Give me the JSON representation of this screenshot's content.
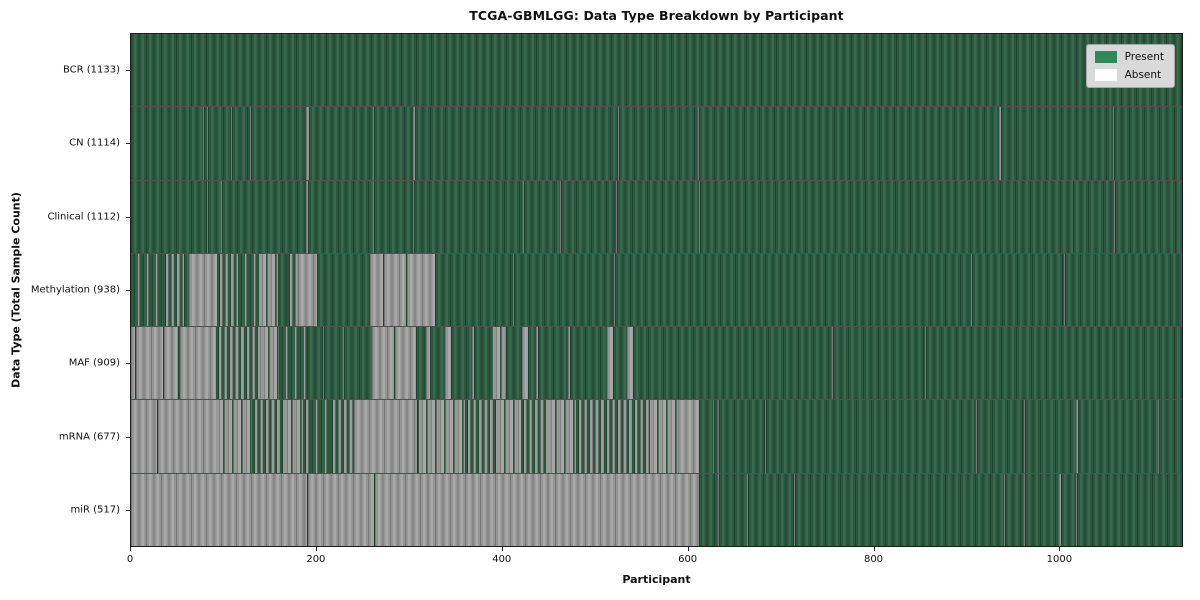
{
  "chart_data": {
    "type": "heatmap",
    "title": "TCGA-GBMLGG: Data Type Breakdown by Participant",
    "xlabel": "Participant",
    "ylabel": "Data Type (Total Sample Count)",
    "x_range": [
      0,
      1133
    ],
    "x_ticks": [
      0,
      200,
      400,
      600,
      800,
      1000
    ],
    "grid": false,
    "colors": {
      "present": "#2e8b57",
      "absent": "#ffffff",
      "bar_edge": "#1b1b1b"
    },
    "legend": {
      "position": "upper-right",
      "entries": [
        {
          "label": "Present",
          "color": "#2e8b57"
        },
        {
          "label": "Absent",
          "color": "#ffffff"
        }
      ]
    },
    "state_key": {
      "present": "data present for all participants in range",
      "absent": "data absent for all participants in range",
      "mixed": "roughly half of participants in range have data",
      "mixed-present": "mostly present with scattered absent participants",
      "mixed-absent": "mostly absent with scattered present participants"
    },
    "rows": [
      {
        "label": "BCR",
        "total_samples": 1133,
        "display": "BCR (1133)",
        "segments": [
          [
            0,
            1133,
            "present"
          ]
        ]
      },
      {
        "label": "CN",
        "total_samples": 1114,
        "display": "CN (1114)",
        "segments": [
          [
            0,
            62,
            "present"
          ],
          [
            62,
            63,
            "absent"
          ],
          [
            63,
            78,
            "present"
          ],
          [
            78,
            79,
            "absent"
          ],
          [
            79,
            82,
            "present"
          ],
          [
            82,
            83,
            "absent"
          ],
          [
            83,
            108,
            "present"
          ],
          [
            108,
            109,
            "absent"
          ],
          [
            109,
            128,
            "present"
          ],
          [
            128,
            129,
            "absent"
          ],
          [
            129,
            189,
            "present"
          ],
          [
            189,
            192,
            "absent"
          ],
          [
            192,
            261,
            "present"
          ],
          [
            261,
            262,
            "absent"
          ],
          [
            262,
            304,
            "present"
          ],
          [
            304,
            306,
            "absent"
          ],
          [
            306,
            525,
            "present"
          ],
          [
            525,
            526,
            "absent"
          ],
          [
            526,
            611,
            "present"
          ],
          [
            611,
            612,
            "absent"
          ],
          [
            612,
            936,
            "present"
          ],
          [
            936,
            938,
            "absent"
          ],
          [
            938,
            1059,
            "present"
          ],
          [
            1059,
            1060,
            "absent"
          ],
          [
            1060,
            1133,
            "present"
          ]
        ]
      },
      {
        "label": "Clinical",
        "total_samples": 1112,
        "display": "Clinical (1112)",
        "segments": [
          [
            0,
            82,
            "present"
          ],
          [
            82,
            83,
            "absent"
          ],
          [
            83,
            97,
            "present"
          ],
          [
            97,
            98,
            "absent"
          ],
          [
            98,
            189,
            "present"
          ],
          [
            189,
            191,
            "absent"
          ],
          [
            191,
            261,
            "present"
          ],
          [
            261,
            262,
            "absent"
          ],
          [
            262,
            304,
            "present"
          ],
          [
            304,
            305,
            "absent"
          ],
          [
            305,
            423,
            "present"
          ],
          [
            423,
            424,
            "absent"
          ],
          [
            424,
            463,
            "present"
          ],
          [
            463,
            464,
            "absent"
          ],
          [
            464,
            523,
            "present"
          ],
          [
            523,
            524,
            "absent"
          ],
          [
            524,
            612,
            "present"
          ],
          [
            612,
            613,
            "absent"
          ],
          [
            613,
            1015,
            "present"
          ],
          [
            1015,
            1016,
            "absent"
          ],
          [
            1016,
            1060,
            "present"
          ],
          [
            1060,
            1061,
            "absent"
          ],
          [
            1061,
            1133,
            "present"
          ]
        ]
      },
      {
        "label": "Methylation",
        "total_samples": 938,
        "display": "Methylation (938)",
        "segments": [
          [
            0,
            34,
            "mixed-present"
          ],
          [
            34,
            57,
            "mixed"
          ],
          [
            57,
            63,
            "present"
          ],
          [
            63,
            93,
            "absent"
          ],
          [
            93,
            115,
            "mixed"
          ],
          [
            115,
            138,
            "mixed-present"
          ],
          [
            138,
            158,
            "mixed-absent"
          ],
          [
            158,
            168,
            "present"
          ],
          [
            168,
            180,
            "mixed"
          ],
          [
            180,
            200,
            "absent"
          ],
          [
            200,
            258,
            "present"
          ],
          [
            258,
            272,
            "absent"
          ],
          [
            272,
            273,
            "present"
          ],
          [
            273,
            296,
            "absent"
          ],
          [
            296,
            297,
            "present"
          ],
          [
            297,
            328,
            "absent"
          ],
          [
            328,
            412,
            "present"
          ],
          [
            412,
            413,
            "absent"
          ],
          [
            413,
            521,
            "present"
          ],
          [
            521,
            522,
            "absent"
          ],
          [
            522,
            906,
            "present"
          ],
          [
            906,
            907,
            "absent"
          ],
          [
            907,
            1006,
            "present"
          ],
          [
            1006,
            1007,
            "absent"
          ],
          [
            1007,
            1133,
            "present"
          ]
        ]
      },
      {
        "label": "MAF",
        "total_samples": 909,
        "display": "MAF (909)",
        "segments": [
          [
            0,
            4,
            "absent"
          ],
          [
            4,
            5,
            "present"
          ],
          [
            5,
            34,
            "absent"
          ],
          [
            34,
            36,
            "present"
          ],
          [
            36,
            51,
            "absent"
          ],
          [
            51,
            53,
            "present"
          ],
          [
            53,
            92,
            "absent"
          ],
          [
            92,
            140,
            "mixed"
          ],
          [
            140,
            160,
            "mixed-absent"
          ],
          [
            160,
            190,
            "mixed-present"
          ],
          [
            190,
            207,
            "present"
          ],
          [
            207,
            208,
            "absent"
          ],
          [
            208,
            229,
            "present"
          ],
          [
            229,
            230,
            "absent"
          ],
          [
            230,
            260,
            "present"
          ],
          [
            260,
            284,
            "absent"
          ],
          [
            284,
            285,
            "present"
          ],
          [
            285,
            307,
            "absent"
          ],
          [
            307,
            318,
            "present"
          ],
          [
            318,
            322,
            "absent"
          ],
          [
            322,
            338,
            "present"
          ],
          [
            338,
            345,
            "absent"
          ],
          [
            345,
            368,
            "present"
          ],
          [
            368,
            370,
            "absent"
          ],
          [
            370,
            390,
            "present"
          ],
          [
            390,
            404,
            "mixed-absent"
          ],
          [
            404,
            421,
            "present"
          ],
          [
            421,
            428,
            "absent"
          ],
          [
            428,
            437,
            "present"
          ],
          [
            437,
            439,
            "absent"
          ],
          [
            439,
            471,
            "present"
          ],
          [
            471,
            473,
            "absent"
          ],
          [
            473,
            513,
            "present"
          ],
          [
            513,
            520,
            "absent"
          ],
          [
            520,
            535,
            "present"
          ],
          [
            535,
            541,
            "absent"
          ],
          [
            541,
            756,
            "present"
          ],
          [
            756,
            757,
            "absent"
          ],
          [
            757,
            856,
            "present"
          ],
          [
            856,
            857,
            "absent"
          ],
          [
            857,
            1043,
            "present"
          ],
          [
            1043,
            1044,
            "absent"
          ],
          [
            1044,
            1133,
            "present"
          ]
        ]
      },
      {
        "label": "mRNA",
        "total_samples": 677,
        "display": "mRNA (677)",
        "segments": [
          [
            0,
            28,
            "absent"
          ],
          [
            28,
            29,
            "present"
          ],
          [
            29,
            92,
            "absent"
          ],
          [
            92,
            130,
            "mixed-absent"
          ],
          [
            130,
            165,
            "mixed"
          ],
          [
            165,
            185,
            "mixed-absent"
          ],
          [
            185,
            192,
            "mixed"
          ],
          [
            192,
            215,
            "mixed-present"
          ],
          [
            215,
            240,
            "mixed"
          ],
          [
            240,
            308,
            "absent"
          ],
          [
            308,
            310,
            "present"
          ],
          [
            310,
            360,
            "mixed-absent"
          ],
          [
            360,
            395,
            "mixed"
          ],
          [
            395,
            420,
            "mixed-absent"
          ],
          [
            420,
            450,
            "mixed"
          ],
          [
            450,
            480,
            "mixed-absent"
          ],
          [
            480,
            560,
            "mixed"
          ],
          [
            560,
            590,
            "mixed-absent"
          ],
          [
            590,
            612,
            "absent"
          ],
          [
            612,
            627,
            "present"
          ],
          [
            627,
            628,
            "absent"
          ],
          [
            628,
            633,
            "present"
          ],
          [
            633,
            634,
            "absent"
          ],
          [
            634,
            684,
            "present"
          ],
          [
            684,
            685,
            "absent"
          ],
          [
            685,
            911,
            "present"
          ],
          [
            911,
            912,
            "absent"
          ],
          [
            912,
            963,
            "present"
          ],
          [
            963,
            964,
            "absent"
          ],
          [
            964,
            1019,
            "present"
          ],
          [
            1019,
            1021,
            "absent"
          ],
          [
            1021,
            1107,
            "present"
          ],
          [
            1107,
            1108,
            "absent"
          ],
          [
            1108,
            1133,
            "present"
          ]
        ]
      },
      {
        "label": "miR",
        "total_samples": 517,
        "display": "miR (517)",
        "segments": [
          [
            0,
            190,
            "absent"
          ],
          [
            190,
            191,
            "present"
          ],
          [
            191,
            262,
            "absent"
          ],
          [
            262,
            263,
            "present"
          ],
          [
            263,
            612,
            "absent"
          ],
          [
            612,
            633,
            "present"
          ],
          [
            633,
            634,
            "absent"
          ],
          [
            634,
            664,
            "present"
          ],
          [
            664,
            665,
            "absent"
          ],
          [
            665,
            715,
            "present"
          ],
          [
            715,
            716,
            "absent"
          ],
          [
            716,
            941,
            "present"
          ],
          [
            941,
            942,
            "absent"
          ],
          [
            942,
            963,
            "present"
          ],
          [
            963,
            964,
            "absent"
          ],
          [
            964,
            1000,
            "present"
          ],
          [
            1000,
            1003,
            "absent"
          ],
          [
            1003,
            1019,
            "present"
          ],
          [
            1019,
            1020,
            "absent"
          ],
          [
            1020,
            1133,
            "present"
          ]
        ]
      }
    ]
  }
}
